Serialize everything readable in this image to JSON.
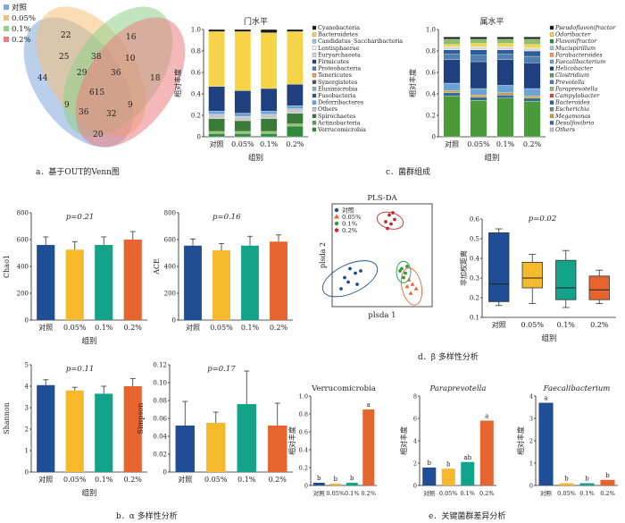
{
  "colors": {
    "blue": "#1f4e96",
    "yellow": "#f6b92b",
    "teal": "#13a38a",
    "orange": "#e6642d",
    "venn_blue": "#7fa8d8",
    "venn_orange": "#f5bf78",
    "venn_green": "#8ed18a",
    "venn_red": "#ec7d82"
  },
  "groups": [
    "对照",
    "0.05%",
    "0.1%",
    "0.2%"
  ],
  "captions": {
    "a": "a．基于OUT的Venn图",
    "b": "b．α 多样性分析",
    "c": "c．菌群组成",
    "d": "d．β 多样性分析",
    "e": "e．关键菌群差异分析"
  },
  "xlabel": "组别",
  "venn": {
    "legend": [
      "对照",
      "0.05%",
      "0.1%",
      "0.2%"
    ],
    "numbers": {
      "n44": "44",
      "n22": "22",
      "n16": "16",
      "n18": "18",
      "n25": "25",
      "n38": "38",
      "n10": "10",
      "n29": "29",
      "n36a": "36",
      "n615": "615",
      "n9a": "9",
      "n9b": "9",
      "n36b": "36",
      "n32": "32",
      "n20": "20"
    }
  },
  "chart_data": [
    {
      "id": "phylum",
      "type": "bar",
      "title": "门水平",
      "xlabel": "组别",
      "ylabel": "相对丰度",
      "ylim": [
        0,
        1.0
      ],
      "yticks": [
        "0",
        "0.2",
        "0.4",
        "0.6",
        "0.8",
        "1.0"
      ],
      "categories": [
        "对照",
        "0.05%",
        "0.1%",
        "0.2%"
      ],
      "legend": [
        "Cyanobacteria",
        "Bacteroidetes",
        "Candidatus_Saccharibacteria",
        "Lentisphaerae",
        "Euryarchaeota",
        "Firmicutes",
        "Proteobacteria",
        "Tenericutes",
        "Synergistetes",
        "Elusimicrobia",
        "Fusobacteria",
        "Deferribacteres",
        "Others",
        "Spirochaetes",
        "Actinobacteria",
        "Verrucomicrobia"
      ],
      "legend_colors": [
        "#1a1a1a",
        "#f5d547",
        "#9ec9e0",
        "#ffffff",
        "#d9d9d9",
        "#1f3f7f",
        "#3f7fbf",
        "#f29e4c",
        "#555555",
        "#aaaaaa",
        "#2e5c99",
        "#6ba3d6",
        "#c7c7c7",
        "#2f7a3a",
        "#5aa05a",
        "#2e8b3e"
      ],
      "stack_series": [
        {
          "label": "Verrucomicrobia",
          "color": "#2e8b3e",
          "values": [
            0.03,
            0.03,
            0.03,
            0.1
          ]
        },
        {
          "label": "Actinobacteria",
          "color": "#8fbf6a",
          "values": [
            0.02,
            0.02,
            0.02,
            0.02
          ]
        },
        {
          "label": "Spirochaetes",
          "color": "#3a7a3a",
          "values": [
            0.12,
            0.1,
            0.12,
            0.1
          ]
        },
        {
          "label": "Others",
          "color": "#c8c8c8",
          "values": [
            0.04,
            0.04,
            0.04,
            0.04
          ]
        },
        {
          "label": "Deferribacteres",
          "color": "#6ba3d6",
          "values": [
            0.03,
            0.03,
            0.03,
            0.03
          ]
        },
        {
          "label": "Firmicutes",
          "color": "#1f3f7f",
          "values": [
            0.23,
            0.21,
            0.21,
            0.2
          ]
        },
        {
          "label": "Bacteroidetes",
          "color": "#f5d547",
          "values": [
            0.51,
            0.55,
            0.52,
            0.49
          ]
        },
        {
          "label": "Cyanobacteria",
          "color": "#1a1a1a",
          "values": [
            0.02,
            0.02,
            0.03,
            0.02
          ]
        }
      ]
    },
    {
      "id": "genus",
      "type": "bar",
      "title": "属水平",
      "xlabel": "组别",
      "ylabel": "相对丰度",
      "ylim": [
        0,
        1.0
      ],
      "yticks": [
        "0",
        "0.2",
        "0.4",
        "0.6",
        "0.8",
        "1.0"
      ],
      "categories": [
        "对照",
        "0.05%",
        "0.1%",
        "0.2%"
      ],
      "legend": [
        "Pseudoflavonifractor",
        "Odoribacter",
        "Flavonifractor",
        "Mucispirillum",
        "Parabacteroides",
        "Faecalibacterium",
        "Helicobacter",
        "Clostridium",
        "Prevotella",
        "Paraprevotella",
        "Campylobacter",
        "Bacteroides",
        "Escherichia",
        "Megamonas",
        "Desulfovibrio",
        "Others"
      ],
      "legend_colors": [
        "#1a1a1a",
        "#f5d547",
        "#2e8b3e",
        "#9ec9e0",
        "#f29e4c",
        "#6ba3d6",
        "#1f3f7f",
        "#5aa05a",
        "#3f7fbf",
        "#8fbf6a",
        "#d94a3a",
        "#2e5c99",
        "#7f7f7f",
        "#c7a23a",
        "#3a6a9a",
        "#c8c8c8"
      ],
      "stack_series": [
        {
          "label": "Others",
          "color": "#4a9a3a",
          "values": [
            0.38,
            0.34,
            0.36,
            0.33
          ]
        },
        {
          "label": "Desulfovibrio",
          "color": "#3a6a9a",
          "values": [
            0.03,
            0.03,
            0.03,
            0.03
          ]
        },
        {
          "label": "Megamonas",
          "color": "#c7a23a",
          "values": [
            0.02,
            0.02,
            0.02,
            0.02
          ]
        },
        {
          "label": "Escherichia",
          "color": "#6ba3d6",
          "values": [
            0.07,
            0.06,
            0.07,
            0.07
          ]
        },
        {
          "label": "Bacteroides",
          "color": "#1f3f7f",
          "values": [
            0.22,
            0.25,
            0.24,
            0.24
          ]
        },
        {
          "label": "Campylobacter",
          "color": "#4f7fb0",
          "values": [
            0.05,
            0.06,
            0.05,
            0.06
          ]
        },
        {
          "label": "Prevotella",
          "color": "#2e5c99",
          "values": [
            0.04,
            0.05,
            0.04,
            0.05
          ]
        },
        {
          "label": "Faecalibacterium",
          "color": "#d9d9d9",
          "values": [
            0.03,
            0.03,
            0.03,
            0.03
          ]
        },
        {
          "label": "Odoribacter",
          "color": "#f5d547",
          "values": [
            0.02,
            0.03,
            0.03,
            0.03
          ]
        },
        {
          "label": "Flavonifractor",
          "color": "#8fbf6a",
          "values": [
            0.05,
            0.04,
            0.04,
            0.05
          ]
        },
        {
          "label": "Pseudoflavonifractor",
          "color": "#1a1a1a",
          "values": [
            0.02,
            0.02,
            0.02,
            0.02
          ]
        }
      ]
    },
    {
      "id": "chao1",
      "type": "bar",
      "ylabel": "Chao1",
      "ptext": "p=0.21",
      "ylim": [
        0,
        800
      ],
      "yticks": [
        "0",
        "200",
        "400",
        "600",
        "800"
      ],
      "categories": [
        "对照",
        "0.05%",
        "0.1%",
        "0.2%"
      ],
      "values": [
        560,
        525,
        560,
        600
      ],
      "errors": [
        60,
        60,
        60,
        60
      ]
    },
    {
      "id": "ace",
      "type": "bar",
      "ylabel": "ACE",
      "ptext": "p=0.16",
      "ylim": [
        0,
        800
      ],
      "yticks": [
        "0",
        "200",
        "400",
        "600",
        "800"
      ],
      "categories": [
        "对照",
        "0.05%",
        "0.1%",
        "0.2%"
      ],
      "values": [
        555,
        520,
        555,
        585
      ],
      "errors": [
        50,
        50,
        70,
        50
      ]
    },
    {
      "id": "shannon",
      "type": "bar",
      "ylabel": "Shannon",
      "ptext": "p=0.11",
      "ylim": [
        0,
        5
      ],
      "yticks": [
        "0",
        "1",
        "2",
        "3",
        "4",
        "5"
      ],
      "categories": [
        "对照",
        "0.05%",
        "0.1%",
        "0.2%"
      ],
      "values": [
        4.05,
        3.8,
        3.65,
        4.0
      ],
      "errors": [
        0.25,
        0.15,
        0.35,
        0.35
      ]
    },
    {
      "id": "simpson",
      "type": "bar",
      "ylabel": "Simpson",
      "ptext": "p=0.17",
      "ylim": [
        0,
        0.12
      ],
      "yticks": [
        "0",
        "0.02",
        "0.04",
        "0.06",
        "0.08",
        "0.10",
        "0.12"
      ],
      "categories": [
        "对照",
        "0.05%",
        "0.1%",
        "0.2%"
      ],
      "values": [
        0.052,
        0.055,
        0.076,
        0.052
      ],
      "errors": [
        0.027,
        0.012,
        0.037,
        0.025
      ]
    },
    {
      "id": "plsda",
      "type": "scatter",
      "title": "PLS-DA",
      "xlabel": "plsda 1",
      "ylabel": "plsda 2",
      "legend": [
        "对照",
        "0.05%",
        "0.1%",
        "0.2%"
      ],
      "series": [
        {
          "name": "对照",
          "color": "#1f4e96",
          "points": [
            [
              -2.1,
              -0.9
            ],
            [
              -1.8,
              -0.5
            ],
            [
              -1.5,
              -0.7
            ],
            [
              -1.4,
              -1.2
            ],
            [
              -2.3,
              -1.4
            ],
            [
              -1.2,
              -0.6
            ],
            [
              -1.9,
              -1.1
            ]
          ]
        },
        {
          "name": "0.05%",
          "color": "#e6642d",
          "points": [
            [
              1.5,
              -1.0
            ],
            [
              1.7,
              -1.2
            ],
            [
              1.9,
              -1.4
            ],
            [
              1.6,
              -1.6
            ],
            [
              1.4,
              -1.3
            ]
          ]
        },
        {
          "name": "0.1%",
          "color": "#2e9a3e",
          "points": [
            [
              1.1,
              -0.5
            ],
            [
              1.3,
              -0.7
            ],
            [
              1.2,
              -0.9
            ],
            [
              1.0,
              -0.6
            ],
            [
              1.4,
              -0.4
            ]
          ]
        },
        {
          "name": "0.2%",
          "color": "#c0282e",
          "points": [
            [
              0.2,
              1.6
            ],
            [
              0.4,
              1.9
            ],
            [
              0.5,
              1.5
            ],
            [
              0.7,
              1.7
            ],
            [
              0.3,
              1.3
            ],
            [
              0.6,
              2.0
            ]
          ]
        }
      ]
    },
    {
      "id": "bray",
      "type": "box",
      "ylabel": "非加权距离",
      "ptext": "p=0.02",
      "ylim": [
        0.1,
        0.6
      ],
      "yticks": [
        "0.1",
        "0.2",
        "0.3",
        "0.4",
        "0.5",
        "0.6"
      ],
      "categories": [
        "对照",
        "0.05%",
        "0.1%",
        "0.2%"
      ],
      "boxes": [
        {
          "min": 0.16,
          "q1": 0.18,
          "median": 0.27,
          "q3": 0.53,
          "max": 0.55
        },
        {
          "min": 0.17,
          "q1": 0.25,
          "median": 0.3,
          "q3": 0.38,
          "max": 0.42
        },
        {
          "min": 0.15,
          "q1": 0.19,
          "median": 0.25,
          "q3": 0.39,
          "max": 0.44
        },
        {
          "min": 0.17,
          "q1": 0.19,
          "median": 0.24,
          "q3": 0.31,
          "max": 0.34
        }
      ]
    },
    {
      "id": "verruco",
      "type": "bar",
      "title": "Verrucomicrobia",
      "title_italic": false,
      "ylabel": "相对丰度",
      "ylim": [
        0,
        1.0
      ],
      "yticks": [
        "0",
        "0.2",
        "0.4",
        "0.6",
        "0.8",
        "1.0"
      ],
      "categories": [
        "对照",
        "0.05%",
        "0.1%",
        "0.2%"
      ],
      "values": [
        0.03,
        0.02,
        0.03,
        0.85
      ],
      "letters": [
        "b",
        "b",
        "b",
        "a"
      ]
    },
    {
      "id": "paraprev",
      "type": "bar",
      "title": "Paraprevotella",
      "title_italic": true,
      "ylabel": "相对丰度",
      "ylim": [
        0,
        8
      ],
      "yticks": [
        "0",
        "2",
        "4",
        "6",
        "8"
      ],
      "categories": [
        "对照",
        "0.05%",
        "0.1%",
        "0.2%"
      ],
      "values": [
        1.6,
        1.5,
        2.1,
        5.8
      ],
      "letters": [
        "b",
        "b",
        "ab",
        "a"
      ]
    },
    {
      "id": "faecali",
      "type": "bar",
      "title": "Faecalibacterium",
      "title_italic": true,
      "ylabel": "相对丰度",
      "ylim": [
        0,
        4
      ],
      "yticks": [
        "0",
        "1",
        "2",
        "3",
        "4"
      ],
      "categories": [
        "对照",
        "0.05%",
        "0.1%",
        "0.2%"
      ],
      "values": [
        3.7,
        0.1,
        0.1,
        0.25
      ],
      "letters": [
        "a",
        "b",
        "b",
        "b"
      ]
    }
  ]
}
